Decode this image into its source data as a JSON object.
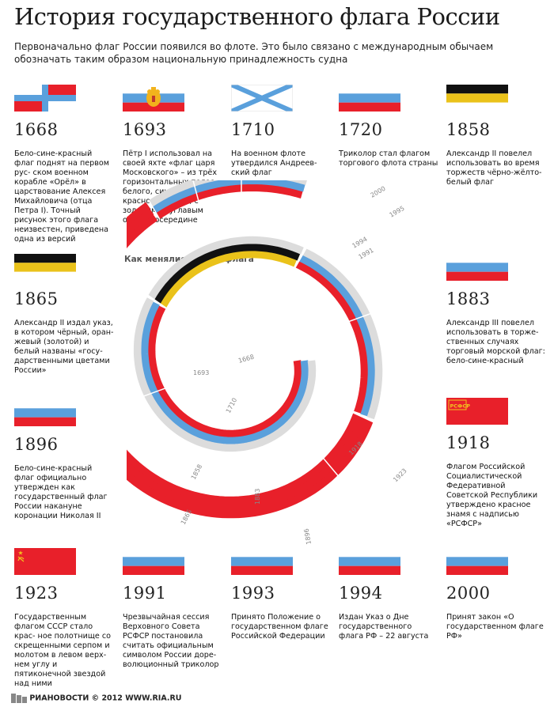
{
  "header": {
    "title": "История государственного флага России",
    "subtitle": "Первоначально флаг России появился во флоте. Это было связано с международным обычаем обозначать таким образом национальную принадлежность судна"
  },
  "chart_label": "Как менялись цвета флага",
  "colors": {
    "white": "#dcdcdc",
    "blue": "#5aa0dc",
    "red": "#e8202a",
    "black": "#111111",
    "gold": "#eac21a"
  },
  "spiral_years": {
    "y1668": "1668",
    "y1693": "1693",
    "y1710": "1710",
    "y1858": "1858",
    "y1865": "1865",
    "y1883": "1883",
    "y1896": "1896",
    "y1918": "1918",
    "y1923": "1923",
    "y1991": "1991",
    "y1993": "1993",
    "y1994": "1994",
    "y1995": "1995",
    "y2000": "2000"
  },
  "cards": [
    {
      "year": "1668",
      "flag": "1668-cross-flag",
      "desc": "Бело-сине-красный флаг поднят на первом рус- ском военном корабле «Орёл» в царствование Алексея Михайловича (отца Петра I). Точный рисунок этого флага неизвестен, приведена одна из версий"
    },
    {
      "year": "1693",
      "flag": "flag-of-tsar-of-moscow",
      "desc": "Пётр I использовал на своей яхте «флаг царя Московского» – из трёх горизонтальных полос белого, синего и красного цветов, с золотым двуглавым орлом посередине"
    },
    {
      "year": "1710",
      "flag": "st-andrew-flag",
      "desc": "На военном флоте утвердился Андреев- ский флаг"
    },
    {
      "year": "1720",
      "flag": "tricolor-flag",
      "desc": "Триколор стал флагом торгового флота страны"
    },
    {
      "year": "1858",
      "flag": "black-gold-white-flag",
      "desc": "Александр II повелел использовать во время торжеств чёрно-жёлто- белый флаг"
    },
    {
      "year": "1865",
      "flag": "black-gold-white-flag",
      "desc": "Александр II издал указ, в котором чёрный, оран- жевый (золотой) и белый названы «госу- дарственными цветами России»"
    },
    {
      "year": "1883",
      "flag": "tricolor-flag",
      "desc": "Александр III повелел использовать в торже- ственных случаях торговый морской флаг: бело-сине-красный"
    },
    {
      "year": "1896",
      "flag": "tricolor-flag",
      "desc": "Бело-сине-красный флаг официально утвержден как государственный флаг России накануне коронации Николая II"
    },
    {
      "year": "1918",
      "flag": "rsfsr-flag",
      "desc": "Флагом Российской Социалистической Федеративной Советской Республики утверждено красное знамя с надписью «РСФСР»"
    },
    {
      "year": "1923",
      "flag": "ussr-flag",
      "desc": "Государственным флагом СССР стало крас- ное полотнище со скрещенными серпом и молотом в левом верх- нем углу и пятиконечной звездой над ними"
    },
    {
      "year": "1991",
      "flag": "tricolor-flag",
      "desc": "Чрезвычайная сессия Верховного Совета РСФСР постановила считать официальным символом России доре- волюционный триколор"
    },
    {
      "year": "1993",
      "flag": "tricolor-flag",
      "desc": "Принято Положение о государственном флаге Российской Федерации"
    },
    {
      "year": "1994",
      "flag": "tricolor-flag",
      "desc": "Издан Указ о Дне государственного флага РФ – 22 августа"
    },
    {
      "year": "2000",
      "flag": "tricolor-flag",
      "desc": "Принят закон «О государственном флаге РФ»"
    }
  ],
  "flag_text": {
    "rsfsr": "РСФСР"
  },
  "footer": {
    "logo": "РИАНОВОСТИ",
    "copyright": "© 2012 WWW.RIA.RU"
  }
}
